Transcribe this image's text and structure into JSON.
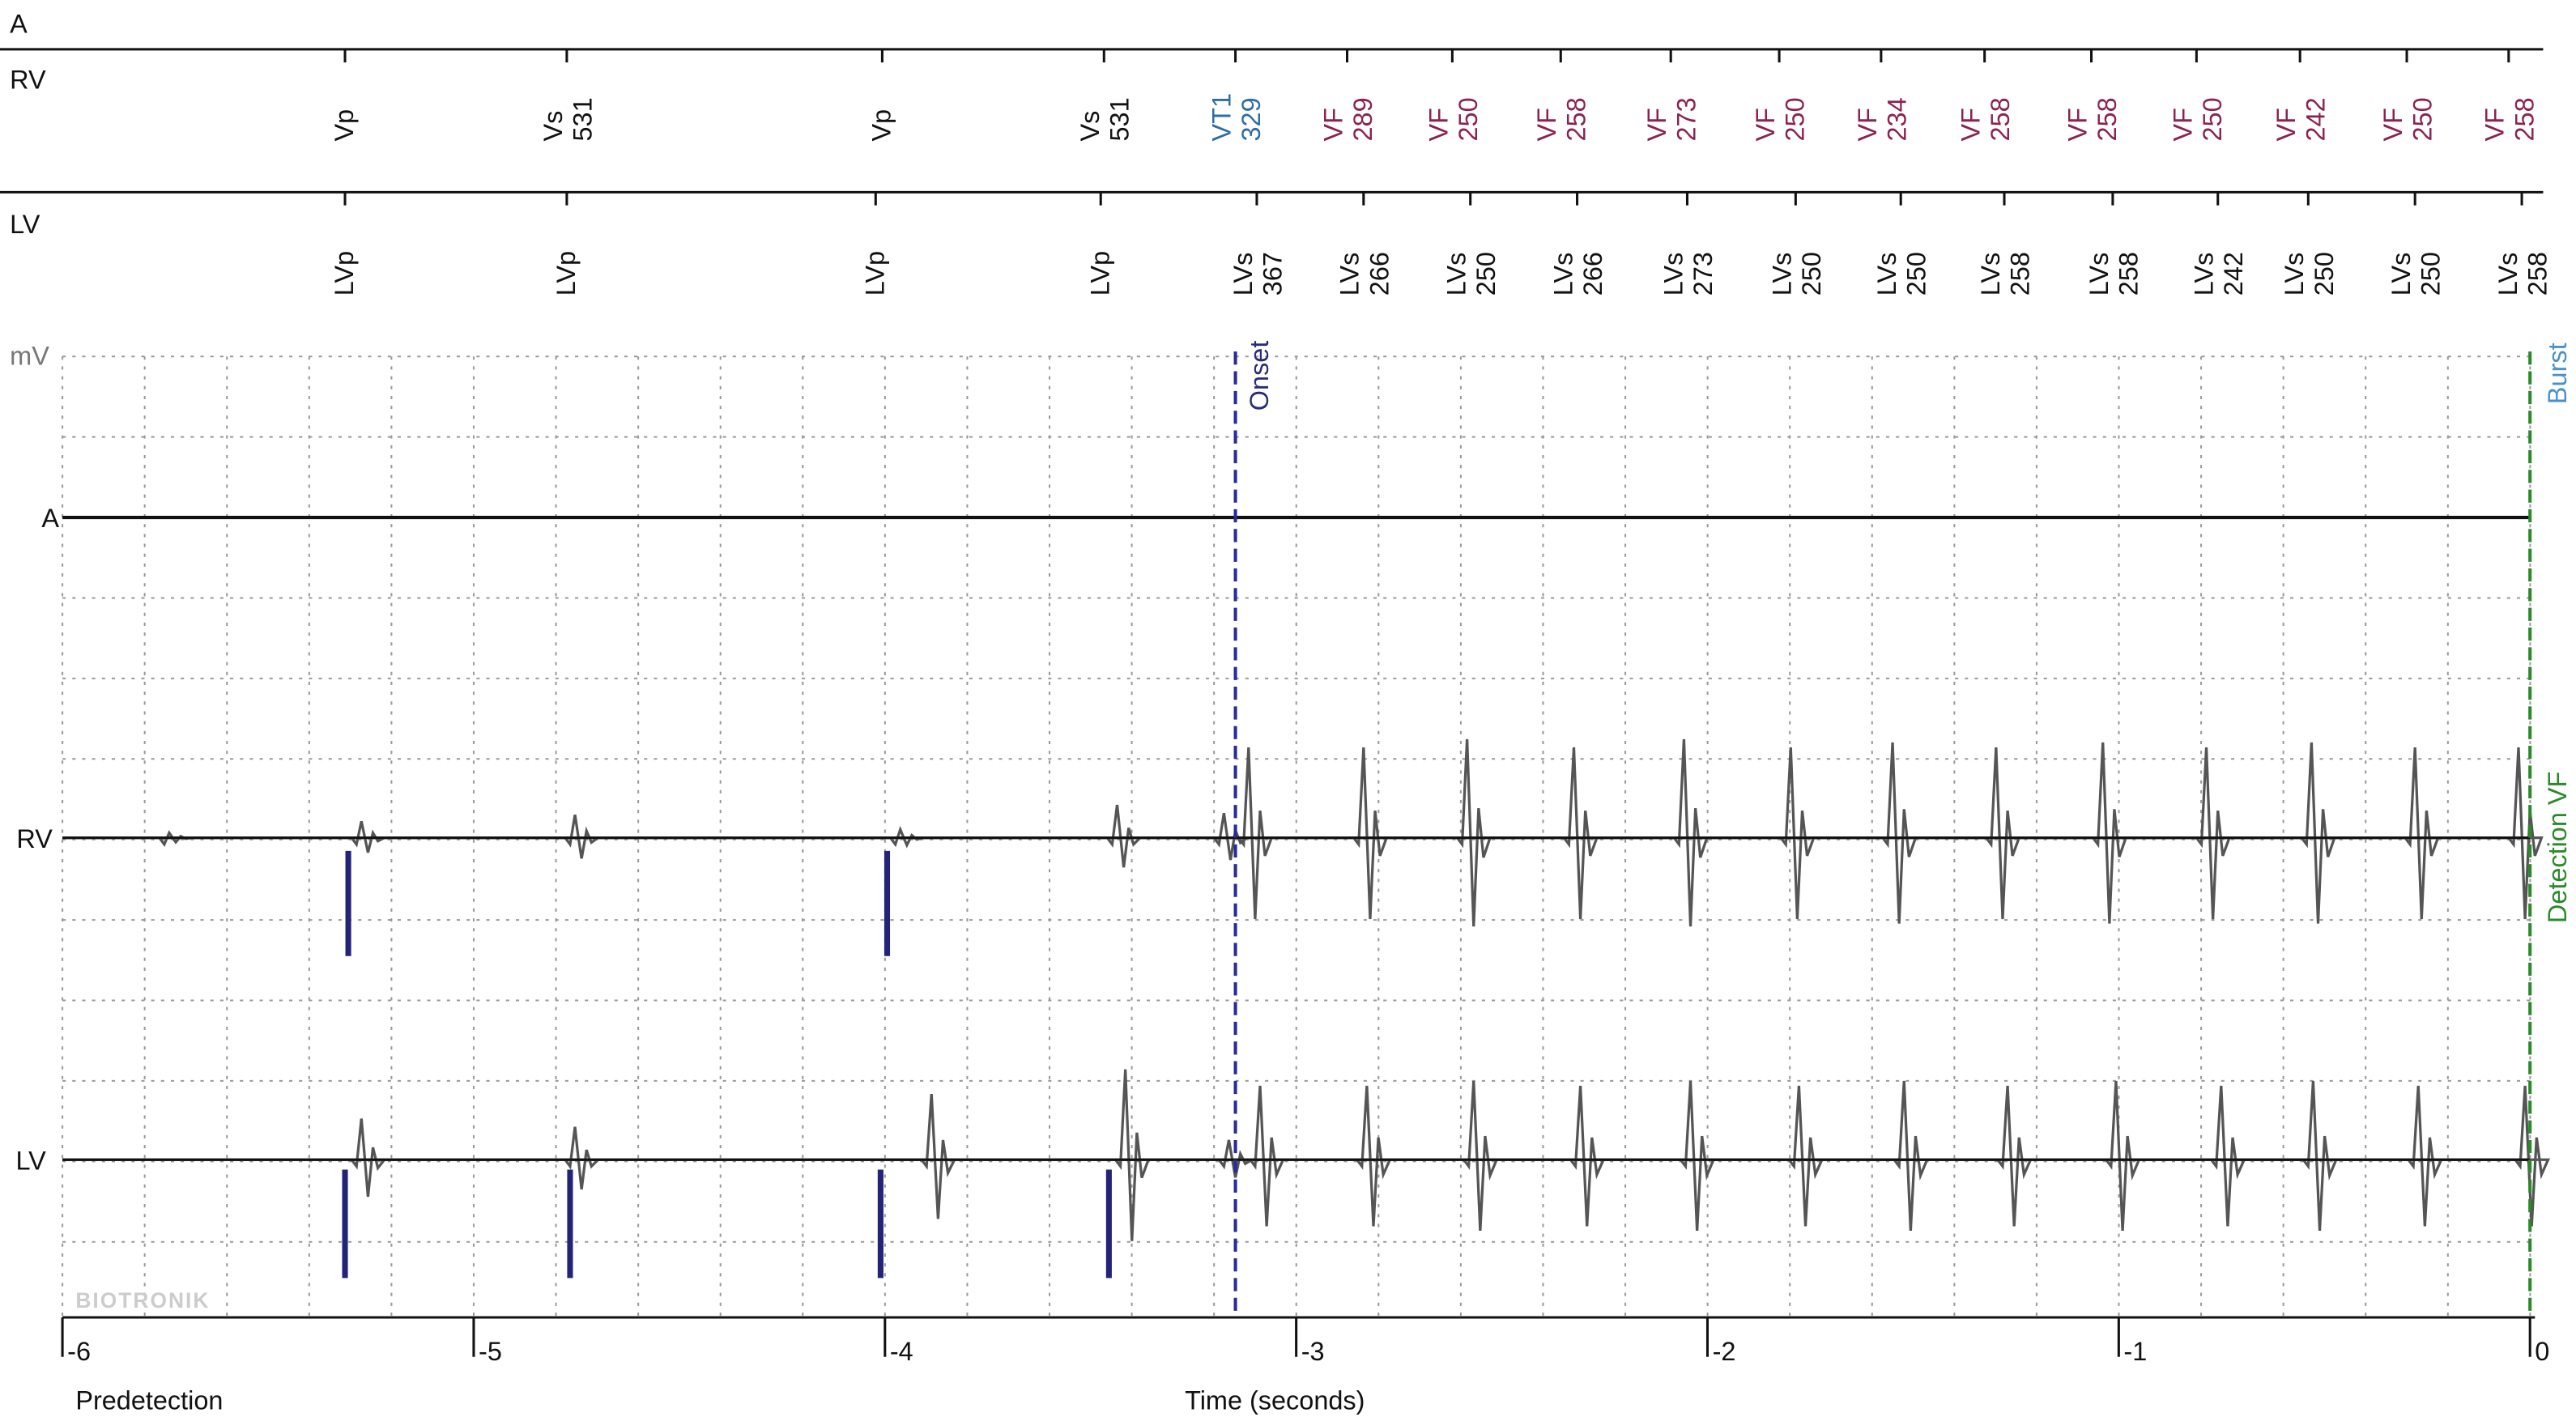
{
  "channels": {
    "a": "A",
    "rv": "RV",
    "lv": "LV"
  },
  "marker_rows": [
    "A",
    "RV",
    "LV"
  ],
  "rv_markers": [
    {
      "label": "Vp"
    },
    {
      "label": "Vs",
      "interval": "531"
    },
    {
      "label": "Vp"
    },
    {
      "label": "Vs",
      "interval": "531"
    },
    {
      "label": "VT1",
      "interval": "329"
    },
    {
      "label": "VF",
      "interval": "289"
    },
    {
      "label": "VF",
      "interval": "250"
    },
    {
      "label": "VF",
      "interval": "258"
    },
    {
      "label": "VF",
      "interval": "273"
    },
    {
      "label": "VF",
      "interval": "250"
    },
    {
      "label": "VF",
      "interval": "234"
    },
    {
      "label": "VF",
      "interval": "258"
    },
    {
      "label": "VF",
      "interval": "258"
    },
    {
      "label": "VF",
      "interval": "250"
    },
    {
      "label": "VF",
      "interval": "242"
    },
    {
      "label": "VF",
      "interval": "250"
    },
    {
      "label": "VF",
      "interval": "258"
    }
  ],
  "lv_markers": [
    {
      "label": "LVp"
    },
    {
      "label": "LVp"
    },
    {
      "label": "LVp"
    },
    {
      "label": "LVp"
    },
    {
      "label": "LVs",
      "interval": "367"
    },
    {
      "label": "LVs",
      "interval": "266"
    },
    {
      "label": "LVs",
      "interval": "250"
    },
    {
      "label": "LVs",
      "interval": "266"
    },
    {
      "label": "LVs",
      "interval": "273"
    },
    {
      "label": "LVs",
      "interval": "250"
    },
    {
      "label": "LVs",
      "interval": "250"
    },
    {
      "label": "LVs",
      "interval": "258"
    },
    {
      "label": "LVs",
      "interval": "258"
    },
    {
      "label": "LVs",
      "interval": "242"
    },
    {
      "label": "LVs",
      "interval": "250"
    },
    {
      "label": "LVs",
      "interval": "250"
    },
    {
      "label": "LVs",
      "interval": "258"
    }
  ],
  "unit_label": "mV",
  "annotations": {
    "onset": "Onset",
    "burst": "Burst",
    "detection": "Detection VF"
  },
  "watermark": "BIOTRONIK",
  "time_ticks": [
    "-6",
    "-5",
    "-4",
    "-3",
    "-2",
    "-1",
    "0"
  ],
  "footer": {
    "left": "Predetection",
    "axis_title": "Time (seconds)"
  }
}
